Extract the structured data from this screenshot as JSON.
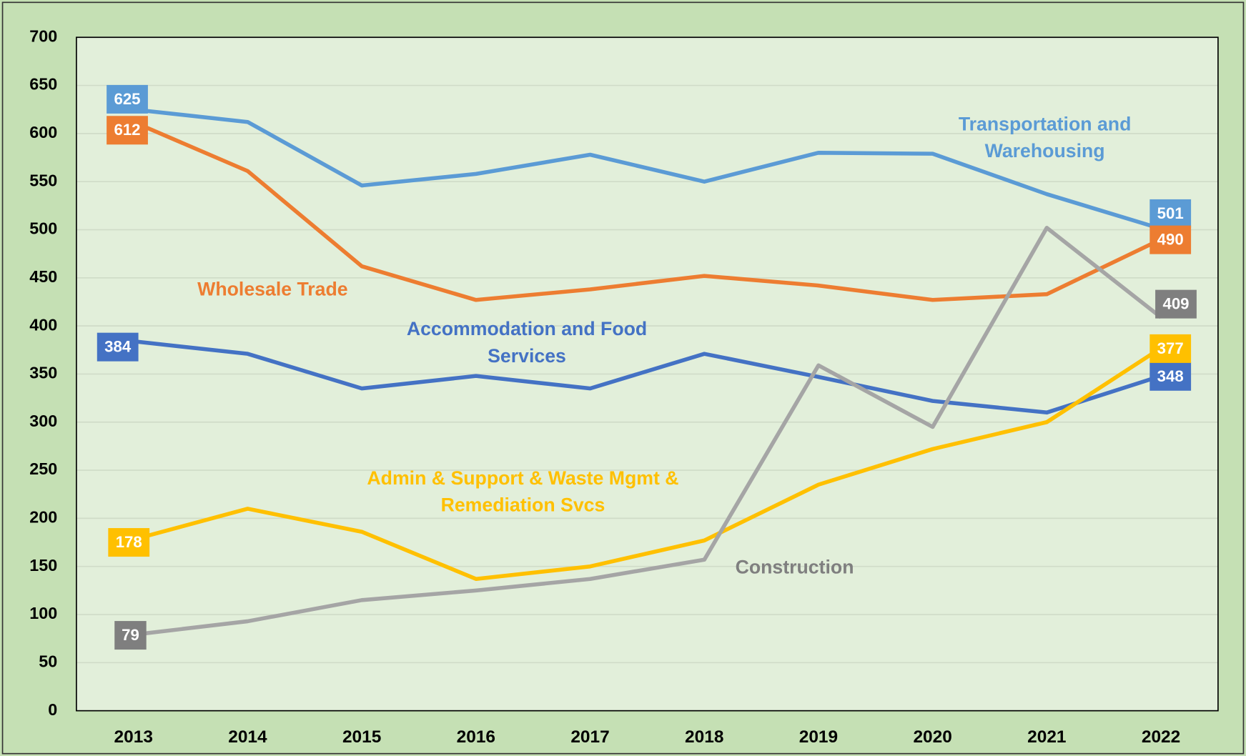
{
  "chart_data": {
    "type": "line",
    "categories": [
      "2013",
      "2014",
      "2015",
      "2016",
      "2017",
      "2018",
      "2019",
      "2020",
      "2021",
      "2022"
    ],
    "ylim": [
      0,
      700
    ],
    "yticks": [
      0,
      50,
      100,
      150,
      200,
      250,
      300,
      350,
      400,
      450,
      500,
      550,
      600,
      650,
      700
    ],
    "grid": true,
    "series": [
      {
        "name": "Transportation and Warehousing",
        "color": "#5b9bd5",
        "values": [
          625,
          612,
          546,
          558,
          578,
          550,
          580,
          579,
          537,
          501
        ]
      },
      {
        "name": "Wholesale Trade",
        "color": "#ed7d31",
        "values": [
          612,
          561,
          462,
          427,
          438,
          452,
          442,
          427,
          433,
          490
        ]
      },
      {
        "name": "Accommodation and Food Services",
        "color": "#4472c4",
        "values": [
          384,
          371,
          335,
          348,
          335,
          371,
          347,
          322,
          310,
          348
        ]
      },
      {
        "name": "Admin & Support & Waste Mgmt & Remediation Svcs",
        "color": "#ffc000",
        "values": [
          178,
          210,
          186,
          137,
          150,
          177,
          235,
          272,
          300,
          377
        ]
      },
      {
        "name": "Construction",
        "color": "#a5a5a5",
        "values": [
          79,
          93,
          115,
          125,
          137,
          157,
          359,
          295,
          502,
          409
        ]
      }
    ]
  }
}
